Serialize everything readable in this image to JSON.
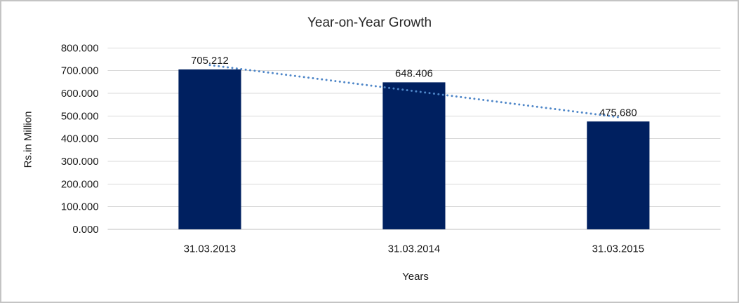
{
  "chart_data": {
    "type": "bar",
    "title": "Year-on-Year Growth",
    "xlabel": "Years",
    "ylabel": "Rs.in Million",
    "categories": [
      "31.03.2013",
      "31.03.2014",
      "31.03.2015"
    ],
    "values": [
      705.212,
      648.406,
      475.68
    ],
    "value_labels": [
      "705.212",
      "648.406",
      "475.680"
    ],
    "ylim": [
      0,
      800
    ],
    "ytick_step": 100,
    "ytick_labels": [
      "0.000",
      "100.000",
      "200.000",
      "300.000",
      "400.000",
      "500.000",
      "600.000",
      "700.000",
      "800.000"
    ],
    "grid": true,
    "legend": "none",
    "trendline": {
      "type": "linear",
      "style": "dotted"
    },
    "colors": {
      "bar": "#002060",
      "gridline": "#D9D9D9",
      "axis_line": "#BFBFBF",
      "trendline": "#4E86C8",
      "text": "#1A1A1A",
      "title": "#262626",
      "border": "#C4C4C4",
      "background": "#FFFFFF"
    }
  }
}
